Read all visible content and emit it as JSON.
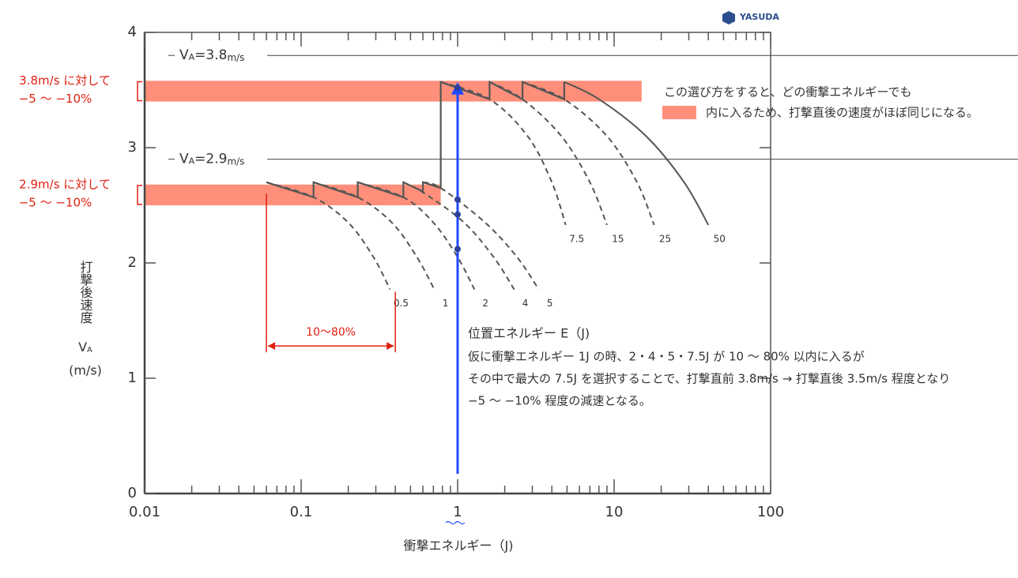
{
  "chart_data": {
    "type": "line",
    "logo": "YASUDA",
    "x_axis_title": "衝撃エネルギー（J)",
    "y_axis_title": "打撃後速度",
    "y_axis_symbol": "V",
    "y_axis_symbol_sub": "A",
    "y_axis_unit": "(m/s)",
    "log_x": true,
    "xlim": [
      0.01,
      100
    ],
    "xticks": [
      0.01,
      0.1,
      1,
      10,
      100
    ],
    "xminorticks": [
      0.02,
      0.03,
      0.04,
      0.05,
      0.06,
      0.07,
      0.08,
      0.09,
      0.2,
      0.3,
      0.4,
      0.5,
      0.6,
      0.7,
      0.8,
      0.9,
      2,
      3,
      4,
      5,
      6,
      7,
      8,
      9,
      20,
      30,
      40,
      50,
      60,
      70,
      80,
      90
    ],
    "ylim": [
      0,
      4
    ],
    "yticks": [
      0,
      1,
      2,
      3,
      4
    ],
    "line_color": "#555555",
    "reference_lines": [
      {
        "value": 3.8,
        "symbol": "V",
        "sub": "A",
        "text": "=3.8",
        "unit": "m/s"
      },
      {
        "value": 2.9,
        "symbol": "V",
        "sub": "A",
        "text": "=2.9",
        "unit": "m/s"
      }
    ],
    "bands": [
      {
        "x": [
          0.01,
          15
        ],
        "y": [
          3.4,
          3.58
        ],
        "color": "#ff8f7a",
        "line1": "3.8m/s に対して",
        "line2": "−5 〜 −10%"
      },
      {
        "x": [
          0.01,
          0.78
        ],
        "y": [
          2.5,
          2.68
        ],
        "color": "#ff8f7a",
        "line1": "2.9m/s に対して",
        "line2": "−5 〜 −10%"
      }
    ],
    "band_label_color": "#e02010",
    "envelope": {
      "x": [
        0.06,
        0.12,
        0.12,
        0.23,
        0.23,
        0.45,
        0.45,
        0.6,
        0.6,
        0.78,
        0.78,
        1.6,
        1.6,
        2.6,
        2.6,
        4.8,
        4.8
      ],
      "y": [
        2.7,
        2.57,
        2.7,
        2.57,
        2.7,
        2.57,
        2.7,
        2.62,
        2.7,
        2.65,
        3.57,
        3.42,
        3.57,
        3.42,
        3.57,
        3.42,
        3.57
      ]
    },
    "curves": [
      {
        "label": "0.5",
        "dashed": true,
        "x": [
          0.06,
          0.12,
          0.2,
          0.29,
          0.37
        ],
        "y": [
          2.7,
          2.57,
          2.35,
          2.05,
          1.77
        ]
      },
      {
        "label": "1",
        "dashed": true,
        "x": [
          0.12,
          0.23,
          0.38,
          0.55,
          0.71
        ],
        "y": [
          2.7,
          2.57,
          2.35,
          2.05,
          1.77
        ]
      },
      {
        "label": "2",
        "dashed": true,
        "x": [
          0.23,
          0.45,
          0.7,
          1,
          1.28
        ],
        "y": [
          2.7,
          2.57,
          2.35,
          2.05,
          1.77
        ]
      },
      {
        "label": "4",
        "dashed": true,
        "x": [
          0.45,
          0.62,
          1.1,
          1.7,
          2.3
        ],
        "y": [
          2.7,
          2.6,
          2.35,
          2.05,
          1.77
        ]
      },
      {
        "label": "5",
        "dashed": true,
        "x": [
          0.6,
          0.78,
          1.5,
          2.4,
          3.3
        ],
        "y": [
          2.7,
          2.65,
          2.35,
          2.05,
          1.77
        ]
      },
      {
        "label": "7.5",
        "dashed": true,
        "x": [
          0.78,
          1.6,
          2.8,
          4,
          4.9
        ],
        "y": [
          3.57,
          3.42,
          3.1,
          2.7,
          2.33
        ]
      },
      {
        "label": "15",
        "dashed": true,
        "x": [
          1.6,
          2.6,
          4.6,
          7,
          9
        ],
        "y": [
          3.57,
          3.42,
          3.1,
          2.7,
          2.33
        ]
      },
      {
        "label": "25",
        "dashed": true,
        "x": [
          2.6,
          4.8,
          9,
          14,
          18
        ],
        "y": [
          3.57,
          3.42,
          3.1,
          2.7,
          2.33
        ]
      },
      {
        "label": "50",
        "dashed": false,
        "x": [
          4.8,
          8,
          16,
          28,
          40
        ],
        "y": [
          3.57,
          3.42,
          3.1,
          2.7,
          2.33
        ]
      }
    ],
    "points": {
      "x": [
        1,
        1,
        1,
        1
      ],
      "y": [
        3.52,
        2.55,
        2.42,
        2.12
      ],
      "color": "#2f3f9e"
    },
    "arrow": {
      "x": 1,
      "y": [
        0.17,
        3.57
      ],
      "color": "#1f4bff"
    },
    "range_annotation": {
      "x": [
        0.06,
        0.4
      ],
      "y": 1.28,
      "y_top": [
        2.6,
        1.75
      ],
      "label": "10〜80%",
      "color": "#e02010"
    },
    "note": {
      "title": "位置エネルギー E（J)",
      "lines": [
        "仮に衝撃エネルギー 1J の時、2・4・5・7.5J が 10 〜 80% 以内に入るが",
        "その中で最大の 7.5J を選択することで、打撃直前 3.8m/s → 打撃直後 3.5m/s 程度となり",
        "−5 〜 −10% 程度の減速となる。"
      ]
    },
    "explanation": {
      "line1": "この選び方をすると、どの衝撃エネルギーでも",
      "line2": "内に入るため、打撃直後の速度がほぼ同じになる。"
    }
  }
}
